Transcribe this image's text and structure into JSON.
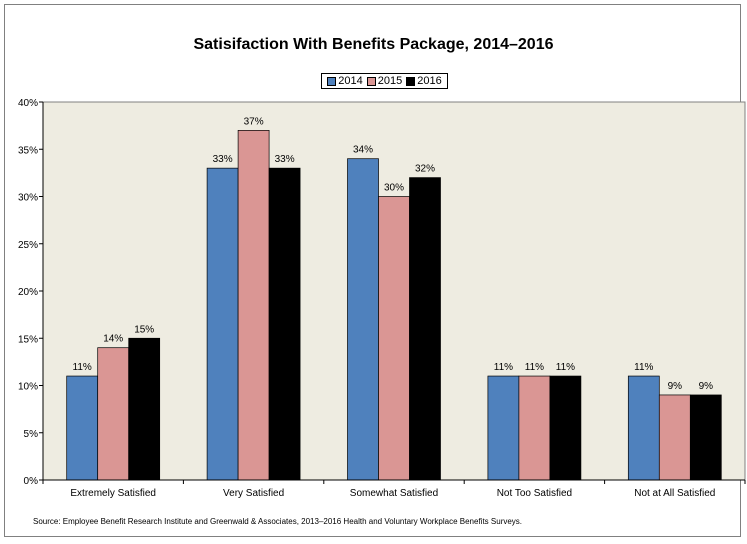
{
  "chart_data": {
    "type": "bar",
    "title": "Satisifaction With Benefits Package, 2014–2016",
    "categories": [
      "Extremely Satisfied",
      "Very Satisfied",
      "Somewhat Satisfied",
      "Not Too Satisfied",
      "Not at All Satisfied"
    ],
    "series": [
      {
        "name": "2014",
        "color": "#4F81BD",
        "values": [
          11,
          33,
          34,
          11,
          11
        ],
        "labels": [
          "11%",
          "33%",
          "34%",
          "11%",
          "11%"
        ]
      },
      {
        "name": "2015",
        "color": "#DA9694",
        "values": [
          14,
          37,
          30,
          11,
          9
        ],
        "labels": [
          "14%",
          "37%",
          "30%",
          "11%",
          "9%"
        ]
      },
      {
        "name": "2016",
        "color": "#000000",
        "values": [
          15,
          33,
          32,
          11,
          9
        ],
        "labels": [
          "15%",
          "33%",
          "32%",
          "11%",
          "9%"
        ]
      }
    ],
    "ylim": [
      0,
      40
    ],
    "yticks": [
      0,
      5,
      10,
      15,
      20,
      25,
      30,
      35,
      40
    ],
    "ytick_labels": [
      "0%",
      "5%",
      "10%",
      "15%",
      "20%",
      "25%",
      "30%",
      "35%",
      "40%"
    ],
    "xlabel": "",
    "ylabel": "",
    "grid": false,
    "legend_position": "top-center",
    "plot_background": "#EEECE1",
    "source": "Source: Employee Benefit Research Institute and Greenwald & Associates, 2013–2016 Health and Voluntary Workplace Benefits Surveys."
  }
}
